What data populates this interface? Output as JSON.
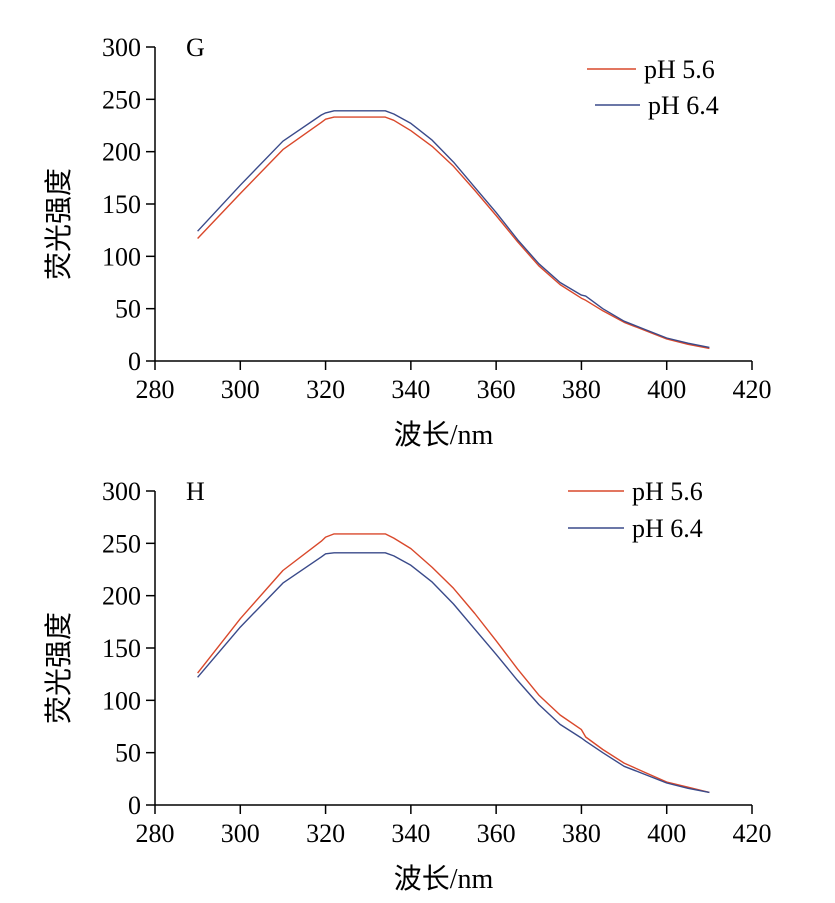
{
  "chart_data": [
    {
      "type": "line",
      "panel_label": "G",
      "xlabel": "波长/nm",
      "ylabel": "荧光强度",
      "xlim": [
        280,
        420
      ],
      "ylim": [
        0,
        300
      ],
      "x_ticks": [
        "280",
        "300",
        "320",
        "340",
        "360",
        "380",
        "400",
        "420"
      ],
      "y_ticks": [
        "0",
        "50",
        "100",
        "150",
        "200",
        "250",
        "300"
      ],
      "grid": false,
      "legend_position": "top-right",
      "series": [
        {
          "name": "pH 5.6",
          "color": "#d9482b",
          "points": [
            [
              290,
              117
            ],
            [
              300,
              160
            ],
            [
              310,
              202
            ],
            [
              319,
              228
            ],
            [
              320,
              231
            ],
            [
              322,
              233
            ],
            [
              334,
              233
            ],
            [
              336,
              230
            ],
            [
              340,
              220
            ],
            [
              345,
              205
            ],
            [
              350,
              186
            ],
            [
              355,
              163
            ],
            [
              360,
              139
            ],
            [
              365,
              114
            ],
            [
              370,
              91
            ],
            [
              375,
              73
            ],
            [
              380,
              60
            ],
            [
              381,
              58
            ],
            [
              385,
              48
            ],
            [
              390,
              37
            ],
            [
              395,
              29
            ],
            [
              400,
              21
            ],
            [
              405,
              16
            ],
            [
              410,
              12
            ]
          ]
        },
        {
          "name": "pH 6.4",
          "color": "#3a4a8a",
          "points": [
            [
              290,
              124
            ],
            [
              300,
              168
            ],
            [
              310,
              210
            ],
            [
              319,
              235
            ],
            [
              320,
              237
            ],
            [
              322,
              239
            ],
            [
              334,
              239
            ],
            [
              336,
              236
            ],
            [
              340,
              227
            ],
            [
              345,
              211
            ],
            [
              350,
              190
            ],
            [
              355,
              166
            ],
            [
              360,
              142
            ],
            [
              365,
              116
            ],
            [
              370,
              93
            ],
            [
              375,
              75
            ],
            [
              380,
              63
            ],
            [
              381,
              62
            ],
            [
              385,
              50
            ],
            [
              390,
              38
            ],
            [
              395,
              30
            ],
            [
              400,
              22
            ],
            [
              405,
              17
            ],
            [
              410,
              13
            ]
          ]
        }
      ]
    },
    {
      "type": "line",
      "panel_label": "H",
      "xlabel": "波长/nm",
      "ylabel": "荧光强度",
      "xlim": [
        280,
        420
      ],
      "ylim": [
        0,
        300
      ],
      "x_ticks": [
        "280",
        "300",
        "320",
        "340",
        "360",
        "380",
        "400",
        "420"
      ],
      "y_ticks": [
        "0",
        "50",
        "100",
        "150",
        "200",
        "250",
        "300"
      ],
      "grid": false,
      "legend_position": "top-right",
      "series": [
        {
          "name": "pH 5.6",
          "color": "#d9482b",
          "points": [
            [
              290,
              126
            ],
            [
              300,
              178
            ],
            [
              310,
              224
            ],
            [
              319,
              252
            ],
            [
              320,
              256
            ],
            [
              322,
              259
            ],
            [
              334,
              259
            ],
            [
              336,
              255
            ],
            [
              340,
              245
            ],
            [
              345,
              227
            ],
            [
              350,
              207
            ],
            [
              355,
              183
            ],
            [
              360,
              157
            ],
            [
              365,
              130
            ],
            [
              370,
              105
            ],
            [
              375,
              86
            ],
            [
              380,
              72
            ],
            [
              381,
              65
            ],
            [
              385,
              53
            ],
            [
              390,
              40
            ],
            [
              395,
              31
            ],
            [
              400,
              22
            ],
            [
              405,
              17
            ],
            [
              410,
              12
            ]
          ]
        },
        {
          "name": "pH 6.4",
          "color": "#3a4a8a",
          "points": [
            [
              290,
              122
            ],
            [
              300,
              170
            ],
            [
              310,
              212
            ],
            [
              319,
              237
            ],
            [
              320,
              240
            ],
            [
              322,
              241
            ],
            [
              334,
              241
            ],
            [
              336,
              238
            ],
            [
              340,
              229
            ],
            [
              345,
              213
            ],
            [
              350,
              192
            ],
            [
              355,
              168
            ],
            [
              360,
              144
            ],
            [
              365,
              119
            ],
            [
              370,
              96
            ],
            [
              375,
              77
            ],
            [
              380,
              64
            ],
            [
              381,
              61
            ],
            [
              385,
              50
            ],
            [
              390,
              37
            ],
            [
              395,
              29
            ],
            [
              400,
              21
            ],
            [
              405,
              16
            ],
            [
              410,
              12
            ]
          ]
        }
      ]
    }
  ]
}
